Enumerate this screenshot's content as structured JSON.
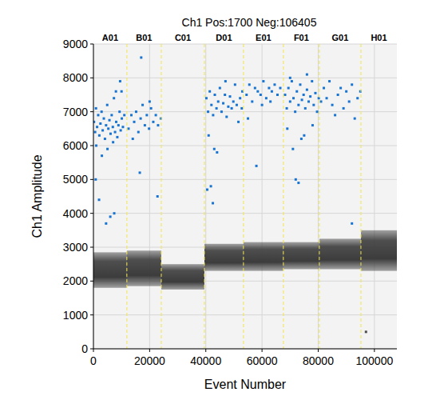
{
  "chart_data": {
    "type": "scatter",
    "title": "Ch1 Pos:1700 Neg:106405",
    "x_label": "Event Number",
    "y_label": "Ch1 Amplitude",
    "xlim": [
      0,
      108000
    ],
    "xticks": [
      0,
      20000,
      40000,
      60000,
      80000,
      100000
    ],
    "ylim": [
      0,
      9000
    ],
    "yticks": [
      0,
      1000,
      2000,
      3000,
      4000,
      5000,
      6000,
      7000,
      8000,
      9000
    ],
    "grid": true,
    "wells": {
      "names": [
        "A01",
        "B01",
        "C01",
        "D01",
        "E01",
        "F01",
        "G01",
        "H01"
      ],
      "bounds": [
        0,
        11900,
        24150,
        39500,
        53400,
        67600,
        80400,
        95200,
        108000
      ]
    },
    "negative_band": {
      "color": "#3c3c3c",
      "low": [
        1800,
        1850,
        1750,
        2300,
        2300,
        2350,
        2350,
        2300
      ],
      "high": [
        2850,
        2900,
        2500,
        3100,
        3150,
        3150,
        3250,
        3500
      ]
    },
    "series": [
      {
        "color": "#1874d2",
        "marker": "square",
        "x": [
          200,
          600,
          900,
          1300,
          1700,
          2100,
          2500,
          2900,
          3300,
          3700,
          4100,
          4500,
          4900,
          5300,
          5700,
          6100,
          6500,
          6900,
          7300,
          7700,
          8100,
          8500,
          8900,
          9300,
          9700,
          10100,
          10500,
          1000,
          3000,
          5000,
          7000,
          8000,
          9500,
          4500,
          2000,
          6000,
          7400,
          11000,
          800,
          10000,
          12500,
          13500,
          14500,
          15200,
          16000,
          16800,
          17500,
          18300,
          19000,
          19800,
          20500,
          21300,
          22200,
          23000,
          24000,
          17000,
          16500,
          22800,
          14000,
          20000,
          40200,
          40800,
          41400,
          42000,
          42600,
          43200,
          43800,
          44400,
          45000,
          45600,
          46200,
          46800,
          47400,
          48000,
          48600,
          49200,
          49800,
          50400,
          51000,
          51600,
          52200,
          52800,
          41000,
          43000,
          40500,
          41800,
          44000,
          47000,
          53000,
          42500,
          54500,
          55500,
          56500,
          57500,
          58500,
          59500,
          60500,
          61500,
          62500,
          63500,
          64500,
          65500,
          66500,
          58000,
          60000,
          55000,
          63000,
          68200,
          68800,
          69400,
          70000,
          70600,
          71200,
          71800,
          72400,
          73000,
          73600,
          74200,
          74800,
          75400,
          76000,
          76600,
          77200,
          77800,
          78400,
          79000,
          79600,
          80200,
          69000,
          71000,
          72000,
          73000,
          75000,
          70000,
          78000,
          74000,
          76000,
          81000,
          82000,
          83000,
          84000,
          85000,
          86000,
          87000,
          88000,
          89000,
          90000,
          91000,
          92000,
          93000,
          94000,
          92000,
          95000
        ],
        "values": [
          6700,
          6400,
          7100,
          6550,
          6900,
          6300,
          6650,
          7000,
          6450,
          6800,
          6200,
          6600,
          7200,
          6500,
          6750,
          6350,
          6900,
          6550,
          7400,
          6400,
          6700,
          6250,
          6600,
          7000,
          6450,
          6800,
          6550,
          6000,
          5700,
          5900,
          6100,
          7600,
          7900,
          3700,
          4400,
          3900,
          4000,
          6900,
          5000,
          7600,
          6500,
          6900,
          6700,
          7000,
          6400,
          6800,
          7200,
          6600,
          6900,
          6500,
          7100,
          6700,
          6900,
          6600,
          6800,
          8600,
          5200,
          4500,
          6200,
          7300,
          7400,
          7000,
          7600,
          7200,
          6900,
          7500,
          7100,
          7300,
          7700,
          7000,
          7250,
          7500,
          6850,
          7150,
          7450,
          7100,
          7300,
          7800,
          7200,
          6700,
          7400,
          7100,
          6300,
          5900,
          4700,
          4800,
          5800,
          7900,
          7600,
          4300,
          7500,
          7800,
          7300,
          7700,
          7600,
          7500,
          7900,
          7400,
          7700,
          7600,
          7800,
          7500,
          7700,
          5400,
          7200,
          6800,
          7300,
          7500,
          7100,
          7700,
          7300,
          7900,
          7400,
          7000,
          7600,
          7200,
          7800,
          7350,
          7500,
          7100,
          7650,
          7300,
          7450,
          7900,
          7200,
          7550,
          7000,
          7400,
          6500,
          5900,
          5000,
          4900,
          6300,
          8000,
          6600,
          6200,
          8100,
          7300,
          7700,
          7400,
          7900,
          7200,
          6900,
          7500,
          7700,
          7100,
          7600,
          7300,
          7800,
          6800,
          7400,
          3700,
          7600
        ]
      },
      {
        "color": "#4d4d4d",
        "marker": "square",
        "x": [
          97000
        ],
        "values": [
          500
        ]
      }
    ]
  }
}
